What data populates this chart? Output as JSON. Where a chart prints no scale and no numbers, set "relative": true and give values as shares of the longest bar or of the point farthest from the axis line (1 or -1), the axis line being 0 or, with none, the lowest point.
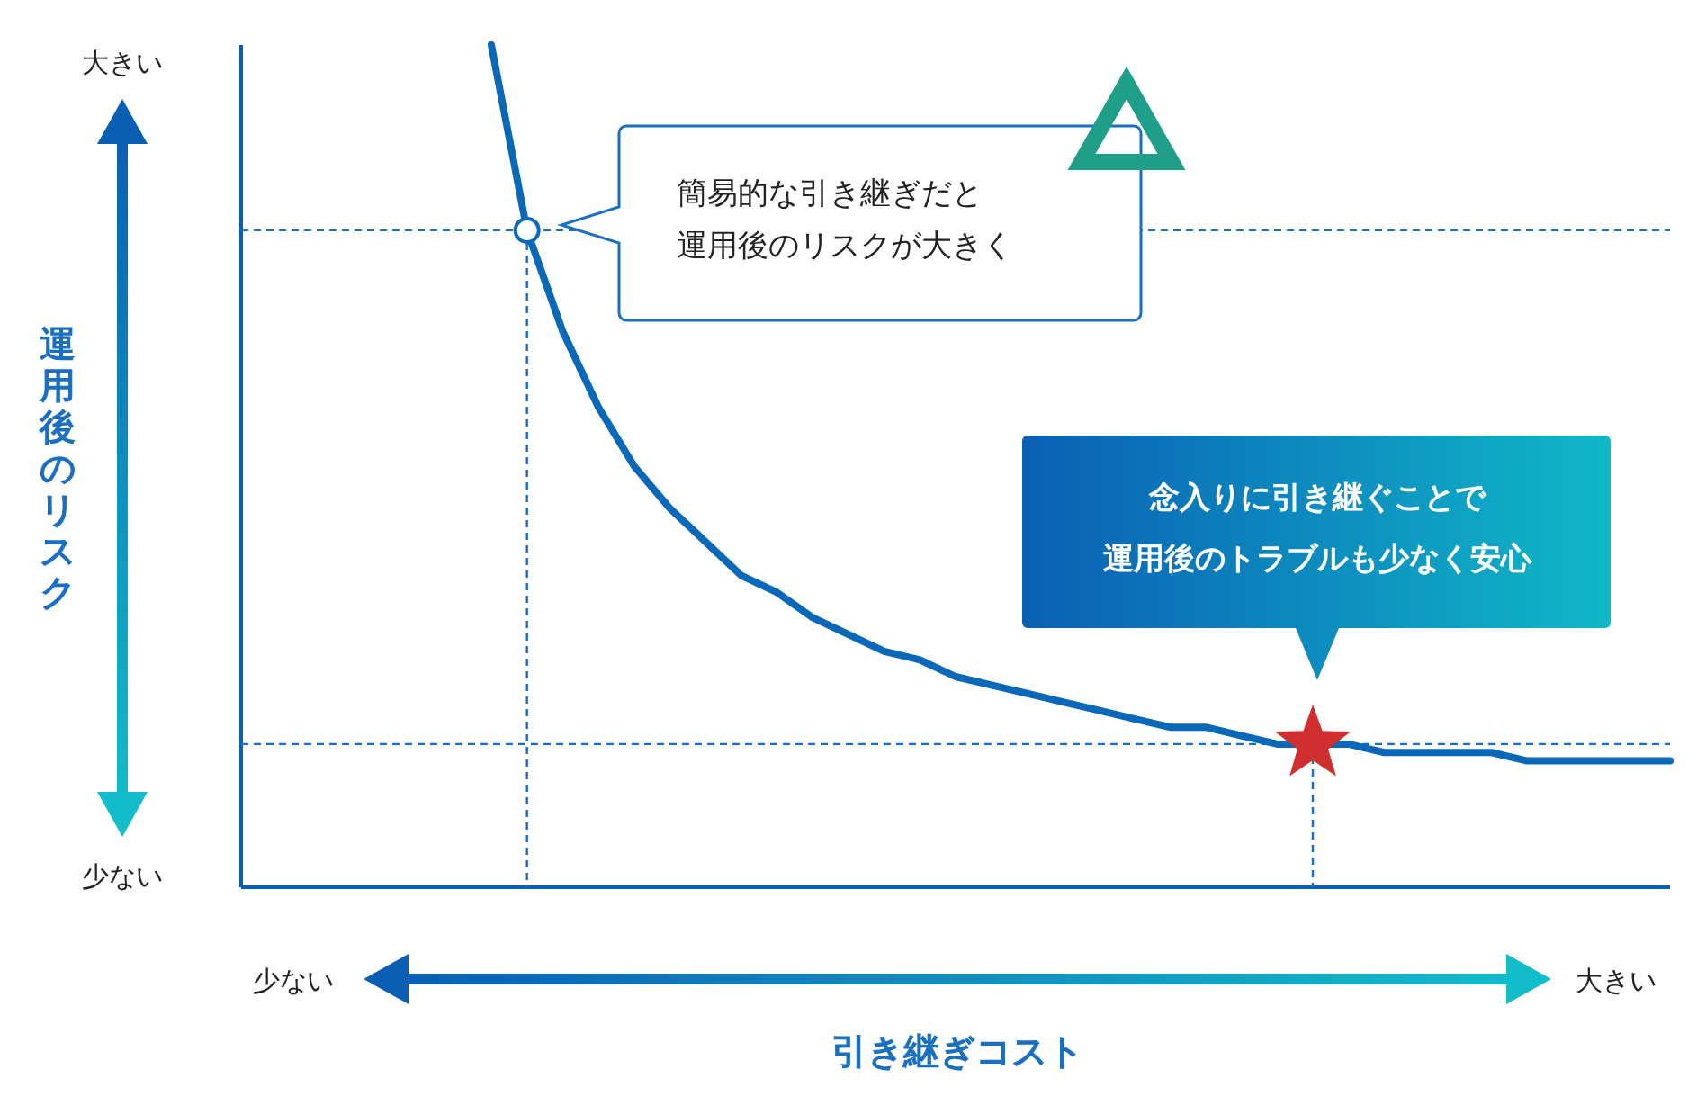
{
  "chart_data": {
    "type": "line",
    "relative": true,
    "xlabel": "引き継ぎコスト",
    "legend": false,
    "grid": false,
    "categories": [
      null,
      null,
      null,
      null,
      null,
      null,
      null,
      null,
      null,
      null,
      null,
      null,
      null,
      null,
      null,
      null,
      null,
      null,
      null,
      null,
      null,
      null,
      null,
      null,
      null,
      null,
      null,
      null,
      null,
      null,
      null,
      null,
      null,
      null
    ],
    "series": [
      {
        "color": "#0a68b8",
        "marker": "none",
        "values": [
          1.0,
          0.78,
          0.66,
          0.57,
          0.5,
          0.45,
          0.41,
          0.37,
          0.35,
          0.32,
          0.3,
          0.28,
          0.27,
          0.25,
          0.24,
          0.23,
          0.22,
          0.21,
          0.2,
          0.19,
          0.19,
          0.18,
          0.17,
          0.17,
          0.17,
          0.16,
          0.16,
          0.16,
          0.16,
          0.15,
          0.15,
          0.15,
          0.15,
          0.15
        ]
      }
    ],
    "ref_lines": [
      {
        "axis": "y",
        "value": 0.78,
        "color": "#1a6fc0",
        "line_style": "dashed"
      },
      {
        "axis": "y",
        "value": 0.17,
        "color": "#1a6fc0",
        "line_style": "dashed"
      }
    ],
    "annotations": [
      "簡易的な引き継ぎだと運用後のリスクが大きく",
      "念入りに引き継ぐことで運用後のトラブルも少なく安心",
      "大きい",
      "少ない",
      "少ない",
      "大きい",
      "運用後のリスク"
    ]
  }
}
